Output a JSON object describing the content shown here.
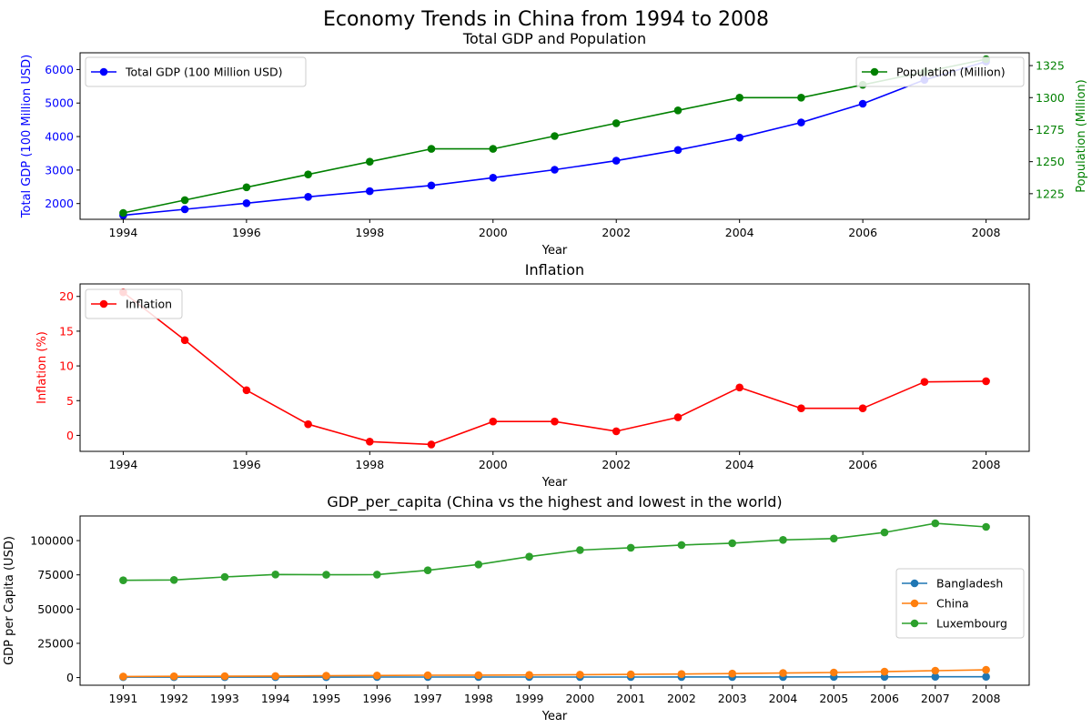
{
  "figure_title": "Economy Trends in China from 1994 to 2008",
  "chart_data": [
    {
      "type": "line",
      "title": "Total GDP and Population",
      "xlabel": "Year",
      "ylabel": "Total GDP (100 Million USD)",
      "y2label": "Population (Million)",
      "x": [
        1994,
        1995,
        1996,
        1997,
        1998,
        1999,
        2000,
        2001,
        2002,
        2003,
        2004,
        2005,
        2006,
        2007,
        2008
      ],
      "xticks": [
        "1994",
        "1996",
        "1998",
        "2000",
        "2002",
        "2004",
        "2006",
        "2008"
      ],
      "xlim": [
        1993.3,
        2008.7
      ],
      "ylim": [
        1530,
        6500
      ],
      "yticks": [
        "2000",
        "3000",
        "4000",
        "5000",
        "6000"
      ],
      "y2lim": [
        1205,
        1335
      ],
      "y2ticks": [
        "1225",
        "1250",
        "1275",
        "1300",
        "1325"
      ],
      "legend_left": "upper left",
      "legend_right": "upper right",
      "series": [
        {
          "name": "Total GDP (100 Million USD)",
          "axis": "left",
          "color": "#0000ff",
          "values": [
            1650,
            1830,
            2010,
            2200,
            2370,
            2540,
            2770,
            3010,
            3280,
            3600,
            3970,
            4420,
            4980,
            5690,
            6240
          ]
        },
        {
          "name": "Population (Million)",
          "axis": "right",
          "color": "#008000",
          "values": [
            1210,
            1220,
            1230,
            1240,
            1250,
            1260,
            1260,
            1270,
            1280,
            1290,
            1300,
            1300,
            1310,
            1320,
            1330
          ]
        }
      ]
    },
    {
      "type": "line",
      "title": "Inflation",
      "xlabel": "Year",
      "ylabel": "Inflation (%)",
      "x": [
        1994,
        1995,
        1996,
        1997,
        1998,
        1999,
        2000,
        2001,
        2002,
        2003,
        2004,
        2005,
        2006,
        2007,
        2008
      ],
      "xticks": [
        "1994",
        "1996",
        "1998",
        "2000",
        "2002",
        "2004",
        "2006",
        "2008"
      ],
      "xlim": [
        1993.3,
        2008.7
      ],
      "ylim": [
        -2.3,
        21.8
      ],
      "yticks": [
        "0",
        "5",
        "10",
        "15",
        "20"
      ],
      "legend": "upper left",
      "series": [
        {
          "name": "Inflation",
          "color": "#ff0000",
          "values": [
            20.6,
            13.7,
            6.5,
            1.6,
            -0.9,
            -1.3,
            2.0,
            2.0,
            0.6,
            2.6,
            6.9,
            3.9,
            3.9,
            7.7,
            7.8
          ]
        }
      ]
    },
    {
      "type": "line",
      "title": "GDP_per_capita (China vs the highest and lowest in the world)",
      "xlabel": "Year",
      "ylabel": "GDP per Capita (USD)",
      "x": [
        1991,
        1992,
        1993,
        1994,
        1995,
        1996,
        1997,
        1998,
        1999,
        2000,
        2001,
        2002,
        2003,
        2004,
        2005,
        2006,
        2007,
        2008
      ],
      "xticks": [
        "1991",
        "1992",
        "1993",
        "1994",
        "1995",
        "1996",
        "1997",
        "1998",
        "1999",
        "2000",
        "2001",
        "2002",
        "2003",
        "2004",
        "2005",
        "2006",
        "2007",
        "2008"
      ],
      "xlim": [
        1990.15,
        2008.85
      ],
      "ylim": [
        -5600,
        118000
      ],
      "yticks": [
        "0",
        "25000",
        "50000",
        "75000",
        "100000"
      ],
      "legend": "center right",
      "series": [
        {
          "name": "Bangladesh",
          "color": "#1f77b4",
          "values": [
            290,
            300,
            310,
            320,
            330,
            350,
            370,
            380,
            390,
            400,
            410,
            420,
            440,
            460,
            490,
            520,
            550,
            600
          ]
        },
        {
          "name": "China",
          "color": "#ff7f0e",
          "values": [
            800,
            900,
            1000,
            1100,
            1300,
            1500,
            1700,
            1800,
            1900,
            2100,
            2300,
            2600,
            2900,
            3300,
            3700,
            4300,
            5000,
            5600
          ]
        },
        {
          "name": "Luxembourg",
          "color": "#2ca02c",
          "values": [
            71000,
            71300,
            73500,
            75300,
            75100,
            75200,
            78300,
            82600,
            88300,
            93100,
            94800,
            96800,
            98100,
            100500,
            101500,
            106000,
            112600,
            110000
          ]
        }
      ]
    }
  ]
}
